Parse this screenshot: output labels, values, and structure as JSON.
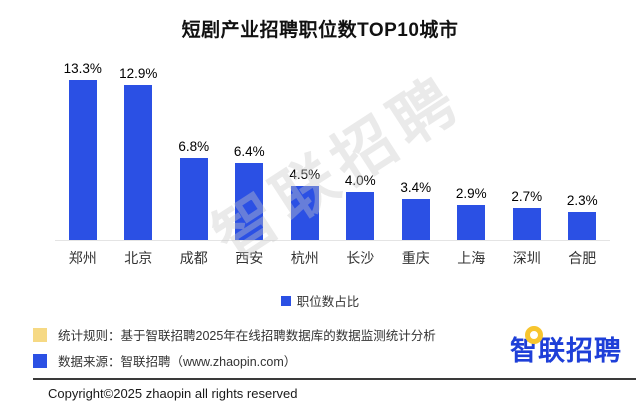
{
  "title": "短剧产业招聘职位数TOP10城市",
  "chart_data": {
    "type": "bar",
    "title": "短剧产业招聘职位数TOP10城市",
    "categories": [
      "郑州",
      "北京",
      "成都",
      "西安",
      "杭州",
      "长沙",
      "重庆",
      "上海",
      "深圳",
      "合肥"
    ],
    "values": [
      13.3,
      12.9,
      6.8,
      6.4,
      4.5,
      4.0,
      3.4,
      2.9,
      2.7,
      2.3
    ],
    "value_labels": [
      "13.3%",
      "12.9%",
      "6.8%",
      "6.4%",
      "4.5%",
      "4.0%",
      "3.4%",
      "2.9%",
      "2.7%",
      "2.3%"
    ],
    "xlabel": "",
    "ylabel": "",
    "ylim": [
      0,
      14.5
    ],
    "grid": false,
    "legend": [
      "职位数占比"
    ],
    "legend_position": "bottom",
    "bar_color": "#2b50e4"
  },
  "legend": {
    "label": "职位数占比",
    "color": "#2b50e4"
  },
  "watermark": "智联招聘",
  "footnotes": [
    {
      "square_color": "#f6d984",
      "text": "统计规则：基于智联招聘2025年在线招聘数据库的数据监测统计分析"
    },
    {
      "square_color": "#2b50e4",
      "text": "数据来源：智联招聘（www.zhaopin.com）"
    }
  ],
  "logo": {
    "text": "智联招聘",
    "ring_color": "#f7c52e",
    "text_color": "#1e3fd8"
  },
  "copyright": "Copyright©2025 zhaopin all rights reserved",
  "colors": {
    "bar": "#2b50e4",
    "axis_line": "#e4e4e4",
    "divider": "#3a3a3a",
    "watermark_gray": "#c9c9c9"
  }
}
